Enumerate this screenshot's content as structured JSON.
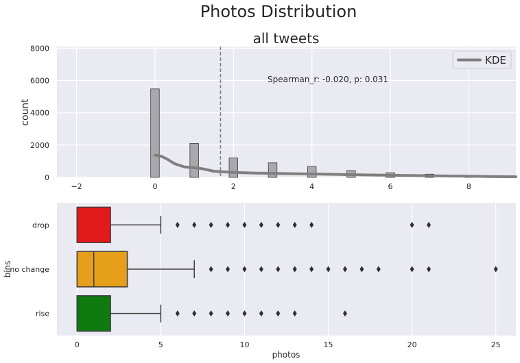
{
  "figure": {
    "suptitle": "Photos Distribution"
  },
  "colors": {
    "panel_bg": "#EAEAF2",
    "grid": "#FFFFFF",
    "hist_fill": "#A9A8AD",
    "kde": "#7F7F7F",
    "mean_line": "#7F7F7F",
    "drop": "#E31A1C",
    "no_change": "#E69F1A",
    "rise": "#0F7A0F",
    "text": "#262626"
  },
  "chart_data": [
    {
      "type": "bar",
      "subtype": "histogram_with_kde",
      "title": "all tweets",
      "xlabel": "",
      "ylabel": "count",
      "xlim": [
        -2.5,
        9.2
      ],
      "ylim": [
        0,
        8100
      ],
      "xticks": [
        -2,
        0,
        2,
        4,
        6,
        8
      ],
      "yticks": [
        0,
        2000,
        4000,
        6000,
        8000
      ],
      "grid": true,
      "legend": {
        "placement": "top-right",
        "entries": [
          "KDE"
        ]
      },
      "annotation": "Spearman_r: -0.020, p: 0.031",
      "mean_line_x": 1.67,
      "bins": [
        {
          "x": 0,
          "count": 5480
        },
        {
          "x": 1,
          "count": 2100
        },
        {
          "x": 2,
          "count": 1200
        },
        {
          "x": 3,
          "count": 900
        },
        {
          "x": 4,
          "count": 680
        },
        {
          "x": 5,
          "count": 420
        },
        {
          "x": 6,
          "count": 290
        },
        {
          "x": 7,
          "count": 200
        },
        {
          "x": 8,
          "count": 110
        },
        {
          "x": 9,
          "count": 60
        }
      ],
      "kde": {
        "name": "KDE",
        "x": [
          0,
          0.15,
          0.3,
          0.5,
          0.75,
          1.0,
          1.2,
          1.5,
          2.0,
          2.5,
          3.0,
          3.5,
          4.0,
          4.5,
          5.0,
          5.5,
          6.0,
          6.5,
          7.0,
          7.5,
          8.0,
          8.5,
          9.2
        ],
        "y": [
          1380,
          1320,
          1150,
          850,
          650,
          600,
          540,
          380,
          310,
          270,
          250,
          230,
          210,
          190,
          170,
          150,
          130,
          115,
          100,
          85,
          70,
          55,
          40
        ]
      }
    },
    {
      "type": "box",
      "title": "",
      "xlabel": "photos",
      "ylabel": "bins",
      "xlim": [
        -1.2,
        26.2
      ],
      "xticks": [
        0,
        5,
        10,
        15,
        20,
        25
      ],
      "grid": true,
      "categories": [
        "drop",
        "no change",
        "rise"
      ],
      "series": [
        {
          "category": "drop",
          "q1": 0,
          "median": 0,
          "q3": 2,
          "whisker_low": 0,
          "whisker_high": 5,
          "outliers": [
            6,
            7,
            8,
            9,
            10,
            11,
            12,
            13,
            14,
            20,
            21
          ]
        },
        {
          "category": "no change",
          "q1": 0,
          "median": 1,
          "q3": 3,
          "whisker_low": 0,
          "whisker_high": 7,
          "outliers": [
            8,
            9,
            10,
            11,
            12,
            13,
            14,
            15,
            16,
            17,
            18,
            20,
            21,
            25
          ]
        },
        {
          "category": "rise",
          "q1": 0,
          "median": 0,
          "q3": 2,
          "whisker_low": 0,
          "whisker_high": 5,
          "outliers": [
            6,
            7,
            8,
            9,
            10,
            11,
            12,
            13,
            16
          ]
        }
      ]
    }
  ]
}
